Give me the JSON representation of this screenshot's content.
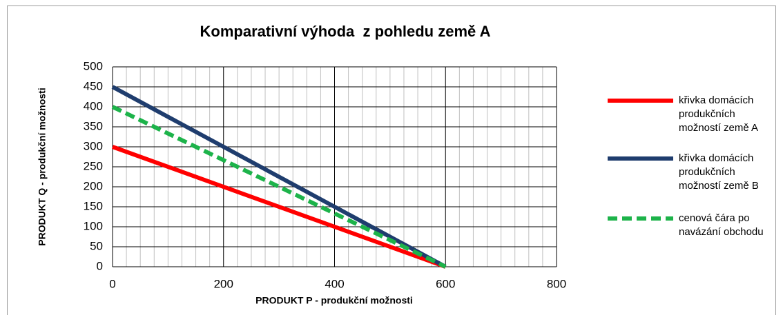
{
  "chart_data": {
    "type": "line",
    "title": "Komparativní výhoda  z pohledu země A",
    "x_label": "PRODUKT P - produkční možnosti",
    "y_label": "PRODUKT Q - produkční možnosti",
    "x": [
      0,
      600
    ],
    "series": [
      {
        "name": "křivka domácích produkčních možností země A",
        "color": "#ff0000",
        "dash": false,
        "values": [
          300,
          0
        ]
      },
      {
        "name": "křivka domácích produkčních možností země B",
        "color": "#1f3d6e",
        "dash": false,
        "values": [
          450,
          0
        ]
      },
      {
        "name": "cenová čára po navázání obchodu",
        "color": "#1db34a",
        "dash": true,
        "values": [
          400,
          0
        ]
      }
    ],
    "xlim": [
      0,
      800
    ],
    "xticks": [
      0,
      200,
      400,
      600,
      800
    ],
    "xminorticks": [
      25,
      50,
      75,
      100,
      125,
      150,
      175,
      225,
      250,
      275,
      300,
      325,
      350,
      375,
      425,
      450,
      475,
      500,
      525,
      550,
      575,
      625,
      650,
      675,
      700,
      725,
      750,
      775
    ],
    "ylim": [
      0,
      500
    ],
    "yticks": [
      0,
      50,
      100,
      150,
      200,
      250,
      300,
      350,
      400,
      450,
      500
    ],
    "grid": true,
    "legend": "right"
  }
}
